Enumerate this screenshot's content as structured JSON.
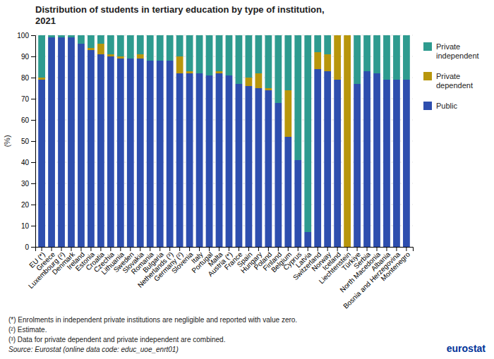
{
  "chart_data": {
    "type": "bar",
    "stacked": true,
    "title": "Distribution of students in tertiary education by type of institution,\n2021",
    "ylabel": "(%)",
    "categories": [
      "EU (*)",
      "Greece",
      "Luxembourg (²)",
      "Denmark",
      "Ireland",
      "Estonia",
      "Croatia",
      "Czechia",
      "Lithuania",
      "Sweden",
      "Slovakia",
      "Romania",
      "Bulgaria",
      "Netherlands (³)",
      "Germany (²)",
      "Slovenia",
      "Italy",
      "Portugal",
      "Malta",
      "Austria (*)",
      "France",
      "Spain",
      "Hungary",
      "Poland",
      "Finland",
      "Belgium",
      "Cyprus",
      "Latvia",
      "Switzerland",
      "Norway",
      "Iceland",
      "Liechtenstein",
      "Türkiye",
      "Serbia",
      "North Macedonia",
      "Albania",
      "Bosnia and Herzegovina",
      "Montenegro"
    ],
    "series": [
      {
        "name": "Public",
        "color": "#2E4EAE",
        "values": [
          79,
          99,
          99,
          99,
          96,
          93,
          91,
          90,
          89,
          89,
          89,
          88,
          88,
          88,
          82,
          82,
          82,
          81,
          82,
          81,
          77,
          76,
          75,
          74,
          68,
          52,
          41,
          7,
          84,
          83,
          79,
          0,
          77,
          83,
          82,
          79,
          79,
          79
        ]
      },
      {
        "name": "Private\ndependent",
        "color": "#B8960C",
        "values": [
          1,
          0,
          0,
          0,
          0,
          1,
          5,
          1,
          1,
          0,
          2,
          0,
          0,
          0,
          8,
          1,
          0,
          0,
          1,
          0,
          0,
          4,
          7,
          1,
          0,
          22,
          0,
          0,
          8,
          8,
          21,
          100,
          0,
          0,
          0,
          0,
          0,
          0
        ]
      },
      {
        "name": "Private\nindependent",
        "color": "#2E9B8F",
        "values": [
          20,
          1,
          1,
          1,
          4,
          6,
          4,
          9,
          10,
          11,
          9,
          12,
          12,
          12,
          10,
          17,
          18,
          19,
          17,
          19,
          23,
          20,
          18,
          25,
          32,
          26,
          59,
          93,
          8,
          9,
          0,
          0,
          23,
          17,
          18,
          21,
          21,
          21
        ]
      }
    ],
    "ylim": [
      0,
      100
    ],
    "yticks": [
      0,
      10,
      20,
      30,
      40,
      50,
      60,
      70,
      80,
      90,
      100
    ],
    "grid": true,
    "legend": "right",
    "annotations": [
      "(*) Enrolments  in independent private institutions are negligible and reported with value zero.",
      "(²) Estimate.",
      "(³) Data for private dependent and private independent are combined.",
      "Source: Eurostat (online data code: educ_uoe_enrt01)",
      "eurostat"
    ]
  }
}
